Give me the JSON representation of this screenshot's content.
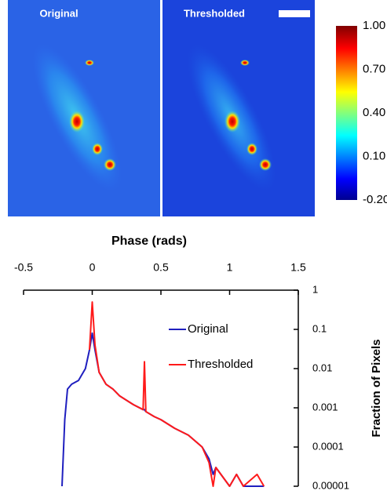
{
  "chart_data": [
    {
      "type": "image",
      "panels": [
        "Original",
        "Thresholded"
      ],
      "colorbar": {
        "lim": [
          -0.2,
          1
        ],
        "ticks": [
          {
            "value": 1,
            "label": "1.00"
          },
          {
            "value": 0.7,
            "label": "0.70"
          },
          {
            "value": 0.4,
            "label": "0.40"
          },
          {
            "value": 0.1,
            "label": "0.10"
          },
          {
            "value": -0.2,
            "label": "-0.20"
          }
        ]
      }
    },
    {
      "type": "line",
      "xlabel": "Phase (rads)",
      "ylabel": "Fraction of Pixels",
      "xlim": [
        -0.5,
        1.5
      ],
      "xticks": [
        -0.5,
        0,
        0.5,
        1,
        1.5
      ],
      "ylim": [
        1e-05,
        1
      ],
      "yticks": [
        1,
        0.1,
        0.01,
        0.001,
        0.0001,
        1e-05
      ],
      "log_y": true,
      "legend": "upper right",
      "x": [
        -0.22,
        -0.2,
        -0.18,
        -0.15,
        -0.1,
        -0.05,
        -0.02,
        0,
        0.02,
        0.05,
        0.1,
        0.15,
        0.2,
        0.3,
        0.37,
        0.38,
        0.39,
        0.45,
        0.5,
        0.6,
        0.7,
        0.8,
        0.85,
        0.88,
        0.9,
        1.0,
        1.05,
        1.1,
        1.2,
        1.25
      ],
      "series": [
        {
          "name": "Original",
          "color": "#1f1fbf",
          "values": [
            1e-05,
            0.0005,
            0.003,
            0.004,
            0.005,
            0.01,
            0.03,
            0.08,
            0.03,
            0.008,
            0.004,
            0.003,
            0.002,
            0.0012,
            0.0009,
            0.0009,
            0.0008,
            0.0006,
            0.0005,
            0.0003,
            0.0002,
            0.0001,
            5e-05,
            2e-05,
            3e-05,
            1e-05,
            2e-05,
            1e-05,
            1e-05,
            1e-05
          ]
        },
        {
          "name": "Thresholded",
          "color": "#ff1a1a",
          "values": [
            null,
            null,
            null,
            null,
            null,
            null,
            0.03,
            0.5,
            0.04,
            0.008,
            0.004,
            0.003,
            0.002,
            0.0012,
            0.0009,
            0.015,
            0.0008,
            0.0006,
            0.0005,
            0.0003,
            0.0002,
            0.0001,
            4e-05,
            1e-05,
            3e-05,
            1e-05,
            2e-05,
            1e-05,
            2e-05,
            1e-05
          ]
        }
      ]
    }
  ]
}
